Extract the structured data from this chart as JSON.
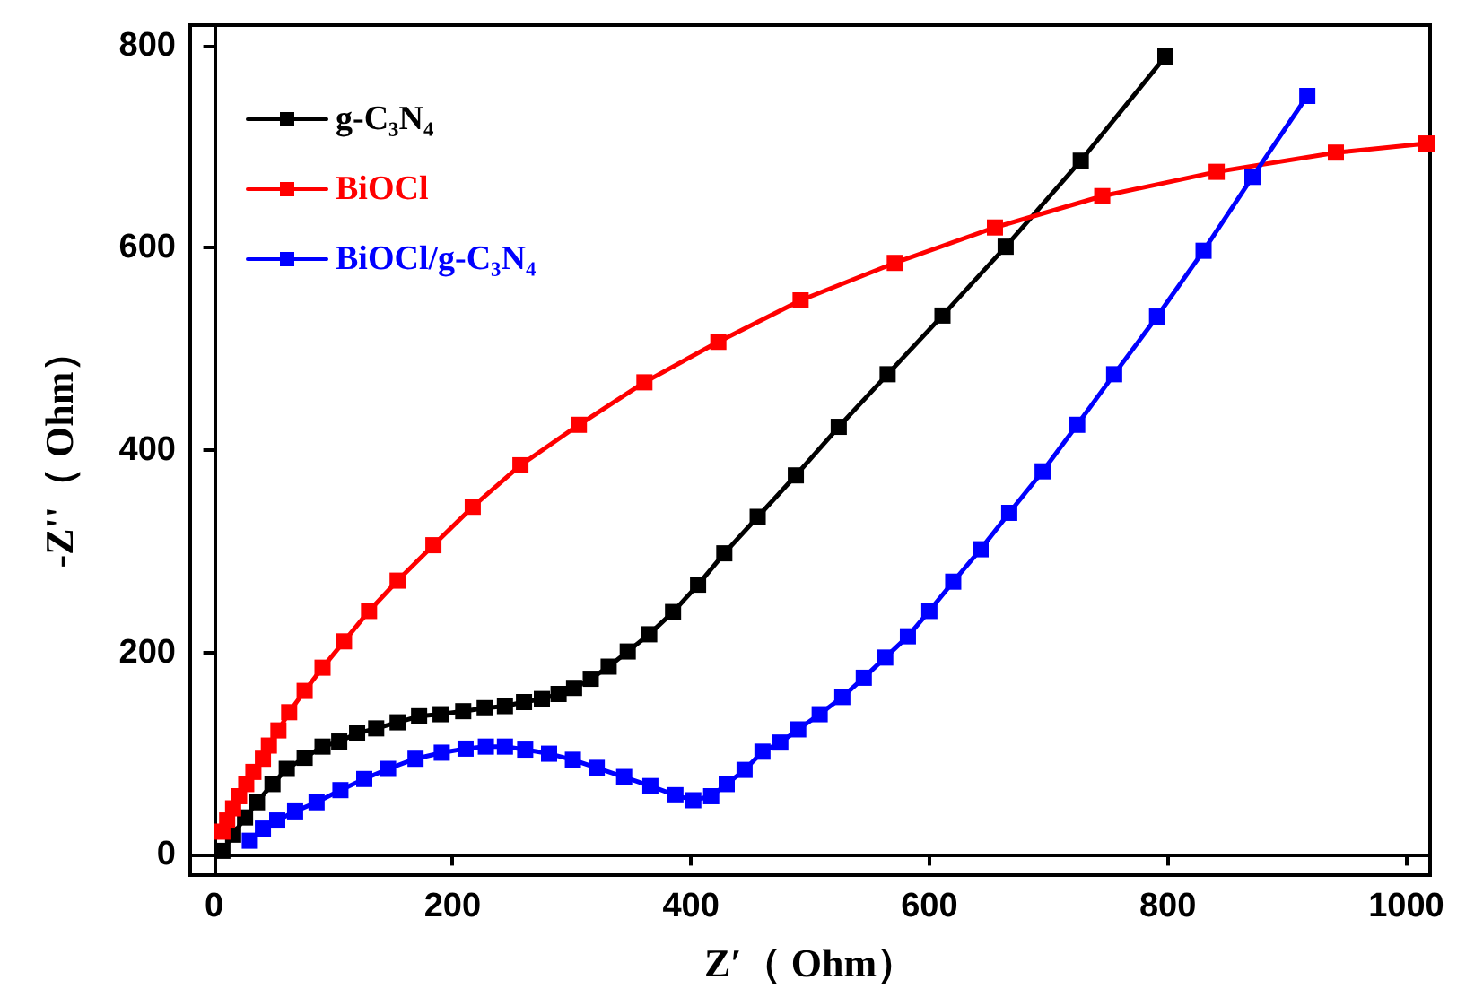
{
  "chart_data": {
    "type": "line",
    "xlabel": "Z′（ Ohm）",
    "ylabel": "-Z''（ Ohm）",
    "xlim": [
      -20,
      1020
    ],
    "ylim": [
      -20,
      820
    ],
    "xticks": [
      0,
      200,
      400,
      600,
      800,
      1000
    ],
    "yticks": [
      0,
      200,
      400,
      600,
      800
    ],
    "legend": "top left",
    "marker": "square",
    "line_style": "solid",
    "series": [
      {
        "name": "g-C₃N₄",
        "color": "#000000",
        "x": [
          7,
          16,
          26,
          36,
          49,
          61,
          76,
          91,
          105,
          120,
          136,
          154,
          172,
          190,
          209,
          227,
          244,
          260,
          275,
          289,
          302,
          316,
          331,
          347,
          365,
          385,
          406,
          428,
          456,
          488,
          524,
          565,
          611,
          664,
          727,
          798
        ],
        "values": [
          4,
          20,
          37,
          52,
          70,
          85,
          96,
          107,
          112,
          120,
          125,
          131,
          137,
          139,
          142,
          145,
          147,
          151,
          154,
          159,
          165,
          174,
          186,
          201,
          218,
          240,
          267,
          298,
          334,
          375,
          423,
          475,
          533,
          601,
          686,
          789
        ]
      },
      {
        "name": "BiOCl",
        "color": "#ff0000",
        "x": [
          7,
          11,
          16,
          21,
          27,
          33,
          41,
          46,
          54,
          63,
          76,
          91,
          109,
          130,
          154,
          184,
          217,
          257,
          306,
          361,
          423,
          492,
          571,
          655,
          745,
          841,
          941,
          1017
        ],
        "values": [
          23,
          34,
          46,
          58,
          70,
          82,
          95,
          108,
          123,
          141,
          162,
          185,
          211,
          241,
          271,
          306,
          344,
          385,
          425,
          467,
          507,
          548,
          585,
          620,
          651,
          675,
          694,
          703
        ]
      },
      {
        "name": "BiOCl/g-C₃N₄",
        "color": "#0000ff",
        "x": [
          30,
          41,
          53,
          68,
          86,
          106,
          126,
          146,
          169,
          191,
          211,
          228,
          244,
          261,
          281,
          301,
          321,
          344,
          366,
          387,
          402,
          417,
          430,
          445,
          460,
          475,
          490,
          508,
          527,
          545,
          563,
          582,
          600,
          620,
          643,
          667,
          695,
          724,
          755,
          791,
          830,
          871,
          917
        ],
        "values": [
          14,
          26,
          34,
          43,
          52,
          64,
          75,
          85,
          95,
          101,
          105,
          107,
          107,
          104,
          100,
          94,
          86,
          77,
          68,
          59,
          54,
          58,
          70,
          84,
          102,
          111,
          124,
          139,
          156,
          175,
          195,
          216,
          241,
          270,
          302,
          338,
          379,
          425,
          475,
          532,
          597,
          670,
          750
        ]
      }
    ]
  }
}
